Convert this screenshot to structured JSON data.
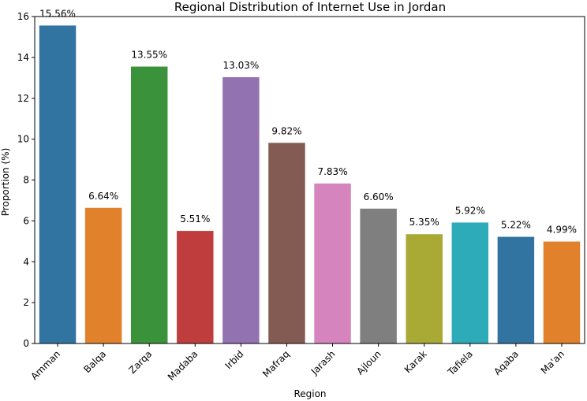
{
  "chart_data": {
    "type": "bar",
    "title": "Regional Distribution of Internet Use in Jordan",
    "xlabel": "Region",
    "ylabel": "Proportion (%)",
    "categories": [
      "Amman",
      "Balqa",
      "Zarqa",
      "Madaba",
      "Irbid",
      "Mafraq",
      "Jarash",
      "Ajloun",
      "Karak",
      "Tafiela",
      "Aqaba",
      "Ma'an"
    ],
    "values": [
      15.56,
      6.64,
      13.55,
      5.51,
      13.03,
      9.82,
      7.83,
      6.6,
      5.35,
      5.92,
      5.22,
      4.99
    ],
    "data_labels": [
      "15.56%",
      "6.64%",
      "13.55%",
      "5.51%",
      "13.03%",
      "9.82%",
      "7.83%",
      "6.60%",
      "5.35%",
      "5.92%",
      "5.22%",
      "4.99%"
    ],
    "colors": [
      "#3274a1",
      "#e1812c",
      "#3a923a",
      "#c03d3e",
      "#9372b2",
      "#845b53",
      "#d684bd",
      "#7f7f7f",
      "#a9aa35",
      "#2eabb8",
      "#3274a1",
      "#e1812c"
    ],
    "yticks": [
      0,
      2,
      4,
      6,
      8,
      10,
      12,
      14,
      16
    ],
    "ylim": [
      0,
      16
    ],
    "grid": false,
    "legend": false
  }
}
